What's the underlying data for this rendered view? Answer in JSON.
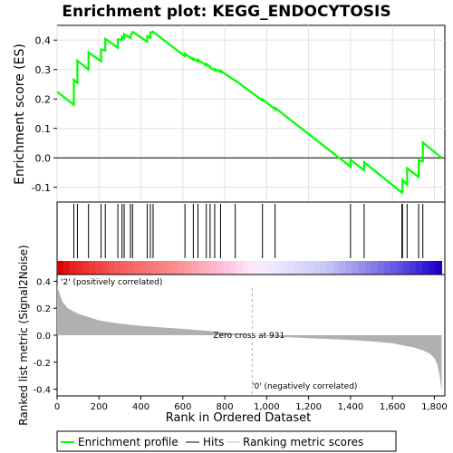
{
  "chart_data": [
    {
      "type": "line",
      "title": "Enrichment plot: KEGG_ENDOCYTOSIS",
      "ylabel": "Enrichment score (ES)",
      "ylim": [
        -0.15,
        0.45
      ],
      "y_ticks": [
        "-0.1",
        "0.0",
        "0.1",
        "0.2",
        "0.3",
        "0.4"
      ],
      "y_tick_values": [
        -0.1,
        0.0,
        0.1,
        0.2,
        0.3,
        0.4
      ],
      "xlim": [
        0,
        1850
      ],
      "grid": true,
      "color": "#00ff00",
      "series": [
        {
          "name": "Enrichment profile",
          "x": [
            0,
            80,
            80,
            97,
            97,
            150,
            150,
            210,
            210,
            230,
            230,
            290,
            290,
            310,
            310,
            320,
            320,
            350,
            350,
            360,
            360,
            430,
            430,
            445,
            445,
            458,
            458,
            610,
            610,
            650,
            650,
            672,
            672,
            712,
            712,
            730,
            730,
            752,
            752,
            780,
            780,
            850,
            850,
            980,
            980,
            1040,
            1040,
            1400,
            1400,
            1465,
            1465,
            1645,
            1645,
            1648,
            1648,
            1670,
            1670,
            1725,
            1725,
            1745,
            1745,
            1835
          ],
          "y": [
            0.225,
            0.18,
            0.265,
            0.255,
            0.33,
            0.3,
            0.358,
            0.328,
            0.368,
            0.365,
            0.404,
            0.374,
            0.403,
            0.4,
            0.412,
            0.408,
            0.42,
            0.407,
            0.412,
            0.43,
            0.428,
            0.395,
            0.413,
            0.408,
            0.426,
            0.427,
            0.428,
            0.345,
            0.354,
            0.333,
            0.337,
            0.327,
            0.333,
            0.314,
            0.319,
            0.31,
            0.306,
            0.297,
            0.301,
            0.292,
            0.296,
            0.262,
            0.263,
            0.195,
            0.199,
            0.165,
            0.17,
            -0.03,
            -0.007,
            -0.042,
            -0.015,
            -0.118,
            -0.113,
            -0.113,
            -0.075,
            -0.091,
            -0.035,
            -0.065,
            -0.008,
            -0.012,
            0.052,
            0.0
          ]
        }
      ]
    },
    {
      "type": "heatmap",
      "hits": [
        80,
        97,
        150,
        210,
        230,
        290,
        310,
        320,
        350,
        360,
        430,
        445,
        458,
        610,
        650,
        672,
        712,
        730,
        752,
        780,
        850,
        980,
        1040,
        1400,
        1465,
        1645,
        1648,
        1670,
        1725,
        1745
      ]
    },
    {
      "type": "area",
      "ylabel": "Ranked list metric (Signal2Noise)",
      "xlabel": "Rank in Ordered Dataset",
      "ylim": [
        -0.45,
        0.45
      ],
      "xlim": [
        0,
        1850
      ],
      "y_ticks": [
        "-0.4",
        "-0.2",
        "0.0",
        "0.2",
        "0.4"
      ],
      "y_tick_values": [
        -0.4,
        -0.2,
        0.0,
        0.2,
        0.4
      ],
      "x_ticks": [
        "0",
        "200",
        "400",
        "600",
        "800",
        "1,000",
        "1,200",
        "1,400",
        "1,600",
        "1,800"
      ],
      "x_tick_values": [
        0,
        200,
        400,
        600,
        800,
        1000,
        1200,
        1400,
        1600,
        1800
      ],
      "x": [
        0,
        10,
        25,
        50,
        100,
        150,
        200,
        300,
        400,
        500,
        600,
        700,
        800,
        931,
        1000,
        1100,
        1200,
        1300,
        1400,
        1500,
        1600,
        1650,
        1700,
        1750,
        1780,
        1800,
        1815,
        1825,
        1835
      ],
      "values": [
        0.37,
        0.32,
        0.25,
        0.2,
        0.16,
        0.135,
        0.11,
        0.085,
        0.07,
        0.058,
        0.047,
        0.035,
        0.02,
        0.0,
        -0.008,
        -0.015,
        -0.022,
        -0.028,
        -0.035,
        -0.045,
        -0.06,
        -0.075,
        -0.09,
        -0.115,
        -0.14,
        -0.17,
        -0.22,
        -0.3,
        -0.42
      ],
      "fill": "#b0b0b0",
      "zero_cross_rank": 931,
      "annotations": [
        "Zero cross at 931",
        "'2' (positively correlated)",
        "'0' (negatively correlated)"
      ],
      "annotation_colors": {
        "positive": "#d00000",
        "negative": "#2020d0"
      }
    }
  ],
  "legend": {
    "position": "bottom",
    "items": [
      {
        "label": "Enrichment profile",
        "color": "#00ff00"
      },
      {
        "label": "Hits",
        "color": "#000000"
      },
      {
        "label": "Ranking metric scores",
        "color": "#c0c0c0"
      }
    ]
  }
}
